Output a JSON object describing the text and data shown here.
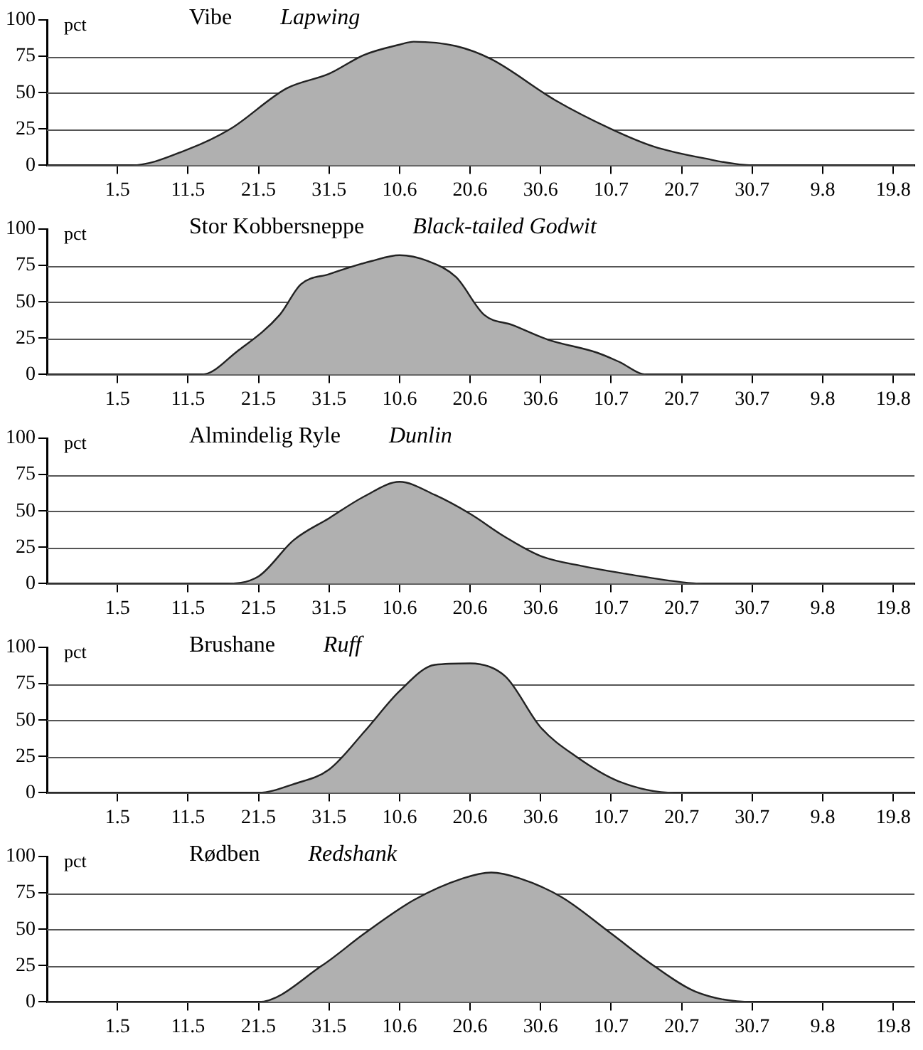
{
  "chart_data": [
    {
      "type": "area",
      "title": "Vibe",
      "subtitle": "Lapwing",
      "ylabel": "pct",
      "color": "#b0b0b0",
      "x": [
        "--04-21",
        "--05-03",
        "--05-11",
        "--05-17",
        "--05-25",
        "--05-31",
        "--06-05",
        "--06-10",
        "--06-12",
        "--06-18",
        "--06-23",
        "--07-02",
        "--07-10",
        "--07-16",
        "--07-23",
        "--07-30",
        "--08-22"
      ],
      "values": [
        0,
        0,
        11,
        25,
        53,
        63,
        76,
        83,
        85,
        82,
        73,
        45,
        25,
        13,
        5,
        0,
        0
      ],
      "xlim": [
        "--04-21",
        "--08-22"
      ],
      "ylim": [
        0,
        100
      ],
      "yticks": [
        0,
        25,
        50,
        75,
        100
      ],
      "xticks": [
        {
          "value": "--05-01",
          "label": "1.5"
        },
        {
          "value": "--05-11",
          "label": "11.5"
        },
        {
          "value": "--05-21",
          "label": "21.5"
        },
        {
          "value": "--05-31",
          "label": "31.5"
        },
        {
          "value": "--06-10",
          "label": "10.6"
        },
        {
          "value": "--06-20",
          "label": "20.6"
        },
        {
          "value": "--06-30",
          "label": "30.6"
        },
        {
          "value": "--07-10",
          "label": "10.7"
        },
        {
          "value": "--07-20",
          "label": "20.7"
        },
        {
          "value": "--07-30",
          "label": "30.7"
        },
        {
          "value": "--08-09",
          "label": "9.8"
        },
        {
          "value": "--08-19",
          "label": "19.8"
        }
      ],
      "grid": "y"
    },
    {
      "type": "area",
      "title": "Stor Kobbersneppe",
      "subtitle": "Black-tailed Godwit",
      "ylabel": "pct",
      "color": "#b0b0b0",
      "x": [
        "--04-21",
        "--05-13",
        "--05-18",
        "--05-24",
        "--05-27",
        "--05-31",
        "--06-06",
        "--06-10",
        "--06-14",
        "--06-18",
        "--06-22",
        "--06-26",
        "--07-01",
        "--07-08",
        "--07-11",
        "--07-15",
        "--08-22"
      ],
      "values": [
        0,
        0,
        16,
        41,
        62,
        69,
        78,
        82,
        78,
        67,
        41,
        34,
        24,
        15,
        9,
        0,
        0
      ],
      "xlim": [
        "--04-21",
        "--08-22"
      ],
      "ylim": [
        0,
        100
      ],
      "yticks": [
        0,
        25,
        50,
        75,
        100
      ],
      "xticks": [
        {
          "value": "--05-01",
          "label": "1.5"
        },
        {
          "value": "--05-11",
          "label": "11.5"
        },
        {
          "value": "--05-21",
          "label": "21.5"
        },
        {
          "value": "--05-31",
          "label": "31.5"
        },
        {
          "value": "--06-10",
          "label": "10.6"
        },
        {
          "value": "--06-20",
          "label": "20.6"
        },
        {
          "value": "--06-30",
          "label": "30.6"
        },
        {
          "value": "--07-10",
          "label": "10.7"
        },
        {
          "value": "--07-20",
          "label": "20.7"
        },
        {
          "value": "--07-30",
          "label": "30.7"
        },
        {
          "value": "--08-09",
          "label": "9.8"
        },
        {
          "value": "--08-19",
          "label": "19.8"
        }
      ],
      "grid": "y"
    },
    {
      "type": "area",
      "title": "Almindelig Ryle",
      "subtitle": "Dunlin",
      "ylabel": "pct",
      "color": "#b0b0b0",
      "x": [
        "--04-21",
        "--05-16",
        "--05-21",
        "--05-26",
        "--05-31",
        "--06-05",
        "--06-10",
        "--06-15",
        "--06-20",
        "--06-25",
        "--06-30",
        "--07-06",
        "--07-13",
        "--07-20",
        "--07-23",
        "--08-22"
      ],
      "values": [
        0,
        0,
        5,
        30,
        45,
        60,
        70,
        61,
        48,
        32,
        19,
        12,
        6,
        1,
        0,
        0
      ],
      "xlim": [
        "--04-21",
        "--08-22"
      ],
      "ylim": [
        0,
        100
      ],
      "yticks": [
        0,
        25,
        50,
        75,
        100
      ],
      "xticks": [
        {
          "value": "--05-01",
          "label": "1.5"
        },
        {
          "value": "--05-11",
          "label": "11.5"
        },
        {
          "value": "--05-21",
          "label": "21.5"
        },
        {
          "value": "--05-31",
          "label": "31.5"
        },
        {
          "value": "--06-10",
          "label": "10.6"
        },
        {
          "value": "--06-20",
          "label": "20.6"
        },
        {
          "value": "--06-30",
          "label": "30.6"
        },
        {
          "value": "--07-10",
          "label": "10.7"
        },
        {
          "value": "--07-20",
          "label": "20.7"
        },
        {
          "value": "--07-30",
          "label": "30.7"
        },
        {
          "value": "--08-09",
          "label": "9.8"
        },
        {
          "value": "--08-19",
          "label": "19.8"
        }
      ],
      "grid": "y"
    },
    {
      "type": "area",
      "title": "Brushane",
      "subtitle": "Ruff",
      "ylabel": "pct",
      "color": "#b0b0b0",
      "x": [
        "--04-21",
        "--05-21",
        "--05-26",
        "--05-31",
        "--06-05",
        "--06-10",
        "--06-15",
        "--06-20",
        "--06-25",
        "--06-30",
        "--07-05",
        "--07-11",
        "--07-19",
        "--08-22"
      ],
      "values": [
        0,
        0,
        6,
        16,
        42,
        70,
        88,
        89,
        80,
        45,
        25,
        8,
        0,
        0
      ],
      "xlim": [
        "--04-21",
        "--08-22"
      ],
      "ylim": [
        0,
        100
      ],
      "yticks": [
        0,
        25,
        50,
        75,
        100
      ],
      "xticks": [
        {
          "value": "--05-01",
          "label": "1.5"
        },
        {
          "value": "--05-11",
          "label": "11.5"
        },
        {
          "value": "--05-21",
          "label": "21.5"
        },
        {
          "value": "--05-31",
          "label": "31.5"
        },
        {
          "value": "--06-10",
          "label": "10.6"
        },
        {
          "value": "--06-20",
          "label": "20.6"
        },
        {
          "value": "--06-30",
          "label": "30.6"
        },
        {
          "value": "--07-10",
          "label": "10.7"
        },
        {
          "value": "--07-20",
          "label": "20.7"
        },
        {
          "value": "--07-30",
          "label": "30.7"
        },
        {
          "value": "--08-09",
          "label": "9.8"
        },
        {
          "value": "--08-19",
          "label": "19.8"
        }
      ],
      "grid": "y"
    },
    {
      "type": "area",
      "title": "Rødben",
      "subtitle": "Redshank",
      "ylabel": "pct",
      "color": "#b0b0b0",
      "x": [
        "--04-21",
        "--05-21",
        "--05-30",
        "--06-05",
        "--06-12",
        "--06-19",
        "--06-23",
        "--06-27",
        "--07-03",
        "--07-10",
        "--07-16",
        "--07-22",
        "--07-30",
        "--08-22"
      ],
      "values": [
        0,
        0,
        25,
        47,
        70,
        85,
        89,
        85,
        72,
        47,
        25,
        7,
        0,
        0
      ],
      "xlim": [
        "--04-21",
        "--08-22"
      ],
      "ylim": [
        0,
        100
      ],
      "yticks": [
        0,
        25,
        50,
        75,
        100
      ],
      "xticks": [
        {
          "value": "--05-01",
          "label": "1.5"
        },
        {
          "value": "--05-11",
          "label": "11.5"
        },
        {
          "value": "--05-21",
          "label": "21.5"
        },
        {
          "value": "--05-31",
          "label": "31.5"
        },
        {
          "value": "--06-10",
          "label": "10.6"
        },
        {
          "value": "--06-20",
          "label": "20.6"
        },
        {
          "value": "--06-30",
          "label": "30.6"
        },
        {
          "value": "--07-10",
          "label": "10.7"
        },
        {
          "value": "--07-20",
          "label": "20.7"
        },
        {
          "value": "--07-30",
          "label": "30.7"
        },
        {
          "value": "--08-09",
          "label": "9.8"
        },
        {
          "value": "--08-19",
          "label": "19.8"
        }
      ],
      "grid": "y"
    }
  ]
}
